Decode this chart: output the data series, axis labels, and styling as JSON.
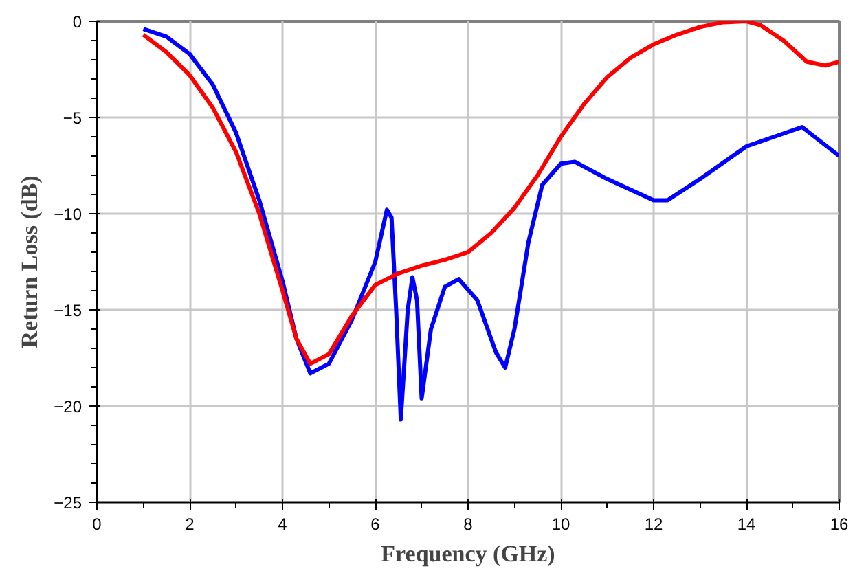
{
  "chart_data": {
    "type": "line",
    "xlabel": "Frequency (GHz)",
    "ylabel": "Return Loss (dB)",
    "xlim": [
      0,
      16
    ],
    "ylim": [
      -25,
      0
    ],
    "xticks": [
      0,
      2,
      4,
      6,
      8,
      10,
      12,
      14,
      16
    ],
    "yticks": [
      -25,
      -20,
      -15,
      -10,
      -5,
      0
    ],
    "grid": true,
    "line_style": "solid",
    "series": [
      {
        "color": "#0000ff",
        "x": [
          1.0,
          1.5,
          2,
          2.5,
          3,
          3.5,
          4,
          4.3,
          4.6,
          5,
          5.5,
          6,
          6.25,
          6.35,
          6.45,
          6.55,
          6.7,
          6.8,
          6.9,
          7.0,
          7.2,
          7.5,
          7.8,
          8.2,
          8.6,
          8.8,
          9.0,
          9.3,
          9.6,
          10,
          10.3,
          11,
          12,
          12.3,
          13,
          14,
          15.2,
          16
        ],
        "values": [
          -0.4,
          -0.8,
          -1.7,
          -3.3,
          -5.8,
          -9.3,
          -13.5,
          -16.5,
          -18.3,
          -17.8,
          -15.5,
          -12.5,
          -9.8,
          -10.2,
          -15,
          -20.7,
          -15,
          -13.3,
          -14.5,
          -19.6,
          -16,
          -13.8,
          -13.4,
          -14.5,
          -17.2,
          -18,
          -16,
          -11.5,
          -8.5,
          -7.4,
          -7.3,
          -8.2,
          -9.3,
          -9.3,
          -8.2,
          -6.5,
          -5.5,
          -7.0
        ]
      },
      {
        "color": "#ff0000",
        "x": [
          1,
          1.5,
          2,
          2.5,
          3,
          3.5,
          4,
          4.3,
          4.6,
          5,
          5.5,
          6,
          6.5,
          7,
          7.5,
          8,
          8.5,
          9,
          9.5,
          10,
          10.5,
          11,
          11.5,
          12,
          12.5,
          13,
          13.5,
          14,
          14.3,
          14.8,
          15.3,
          15.7,
          16
        ],
        "values": [
          -0.7,
          -1.6,
          -2.8,
          -4.5,
          -6.8,
          -10,
          -14,
          -16.5,
          -17.8,
          -17.3,
          -15.3,
          -13.7,
          -13.1,
          -12.7,
          -12.4,
          -12,
          -11,
          -9.7,
          -8.0,
          -6,
          -4.3,
          -2.9,
          -1.9,
          -1.2,
          -0.7,
          -0.3,
          -0.05,
          0,
          -0.2,
          -1.0,
          -2.1,
          -2.3,
          -2.1
        ]
      }
    ]
  }
}
